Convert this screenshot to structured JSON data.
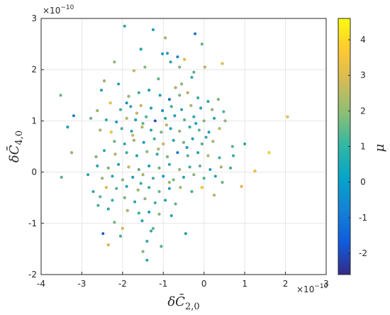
{
  "chart_data": {
    "type": "scatter",
    "xlabel_base": "δC̄",
    "xlabel_sub": "2,0",
    "ylabel_base": "δC̄",
    "ylabel_sub": "4,0",
    "colorbar_label": "μ",
    "x_exponent_base": "×10",
    "x_exponent_power": "−10",
    "y_exponent_base": "×10",
    "y_exponent_power": "−10",
    "xlim": [
      -4,
      3
    ],
    "ylim": [
      -2,
      3
    ],
    "xticks": [
      "-4",
      "-3",
      "-2",
      "-1",
      "0",
      "1",
      "2",
      "3"
    ],
    "yticks": [
      "-2",
      "-1",
      "0",
      "1",
      "2",
      "3"
    ],
    "clim": [
      -2.6,
      4.6
    ],
    "cticks": [
      "-2",
      "-1",
      "0",
      "1",
      "2",
      "3",
      "4"
    ],
    "colormap": [
      "#352a87",
      "#0f5cdd",
      "#1481d6",
      "#06a4ca",
      "#2eb7a4",
      "#87bf77",
      "#d1bb59",
      "#fec832",
      "#f9fb0e"
    ],
    "grid": true,
    "points": [
      [
        -1.95,
        2.85,
        0.8
      ],
      [
        -1.25,
        2.78,
        0.1
      ],
      [
        -0.95,
        2.62,
        2.3
      ],
      [
        -0.22,
        2.7,
        -1.1
      ],
      [
        -0.05,
        2.5,
        1.5
      ],
      [
        -1.55,
        2.4,
        0.4
      ],
      [
        -1.02,
        2.31,
        0.2
      ],
      [
        -0.65,
        2.25,
        -0.6
      ],
      [
        -0.48,
        2.2,
        3.4
      ],
      [
        -0.6,
        2.05,
        1.8
      ],
      [
        -1.45,
        2.05,
        1.9
      ],
      [
        0.02,
        2.05,
        2.7
      ],
      [
        -0.82,
        2.15,
        0.6
      ],
      [
        -2.2,
        2.15,
        2.0
      ],
      [
        -1.72,
        1.98,
        3.0
      ],
      [
        0.45,
        2.12,
        3.4
      ],
      [
        -0.25,
        1.95,
        1.4
      ],
      [
        -2.45,
        1.78,
        2.2
      ],
      [
        -2.52,
        1.6,
        0.6
      ],
      [
        -3.52,
        1.5,
        1.6
      ],
      [
        -3.2,
        1.1,
        -0.8
      ],
      [
        -3.35,
        0.88,
        0.3
      ],
      [
        -2.1,
        1.72,
        0.4
      ],
      [
        -2.3,
        1.35,
        3.7
      ],
      [
        -1.85,
        1.48,
        2.1
      ],
      [
        -1.6,
        1.55,
        1.1
      ],
      [
        -1.35,
        1.6,
        0.1
      ],
      [
        -1.08,
        1.5,
        0.3
      ],
      [
        -0.85,
        1.42,
        -1.2
      ],
      [
        -0.6,
        1.5,
        1.7
      ],
      [
        -0.4,
        1.55,
        2.6
      ],
      [
        -0.15,
        1.45,
        0.9
      ],
      [
        0.1,
        1.38,
        0.5
      ],
      [
        0.35,
        1.42,
        1.8
      ],
      [
        -2.62,
        1.2,
        2.2
      ],
      [
        -2.05,
        1.22,
        1.0
      ],
      [
        -1.8,
        1.28,
        0.7
      ],
      [
        -1.55,
        1.3,
        2.9
      ],
      [
        -1.3,
        1.25,
        0.2
      ],
      [
        -1.02,
        1.2,
        -0.3
      ],
      [
        -0.8,
        1.28,
        1.0
      ],
      [
        -0.55,
        1.22,
        0.5
      ],
      [
        -0.32,
        1.3,
        2.4
      ],
      [
        -0.08,
        1.25,
        0.1
      ],
      [
        0.2,
        1.22,
        2.0
      ],
      [
        0.48,
        1.18,
        1.3
      ],
      [
        -2.78,
        1.05,
        1.6
      ],
      [
        -2.4,
        1.02,
        0.9
      ],
      [
        -2.15,
        0.98,
        0.1
      ],
      [
        -1.9,
        1.05,
        2.5
      ],
      [
        -1.68,
        1.02,
        0.3
      ],
      [
        -1.42,
        1.08,
        1.2
      ],
      [
        -1.2,
        1.0,
        -1.9
      ],
      [
        -0.95,
        1.05,
        0.6
      ],
      [
        -0.72,
        1.1,
        0.2
      ],
      [
        -0.48,
        1.02,
        1.5
      ],
      [
        -0.25,
        1.08,
        0.7
      ],
      [
        0.0,
        1.0,
        1.9
      ],
      [
        0.25,
        1.05,
        0.4
      ],
      [
        0.52,
        1.0,
        2.1
      ],
      [
        -2.55,
        0.82,
        2.3
      ],
      [
        -2.28,
        0.78,
        3.8
      ],
      [
        -2.02,
        0.85,
        1.2
      ],
      [
        -1.78,
        0.8,
        0.5
      ],
      [
        -1.52,
        0.88,
        2.6
      ],
      [
        -1.3,
        0.82,
        0.4
      ],
      [
        -1.05,
        0.78,
        1.7
      ],
      [
        -0.82,
        0.85,
        0.2
      ],
      [
        -0.6,
        0.8,
        2.0
      ],
      [
        -0.35,
        0.88,
        0.9
      ],
      [
        -0.12,
        0.82,
        1.4
      ],
      [
        0.12,
        0.78,
        0.3
      ],
      [
        0.38,
        0.85,
        2.6
      ],
      [
        -2.2,
        0.6,
        1.6
      ],
      [
        -1.95,
        0.55,
        0.8
      ],
      [
        -1.72,
        0.62,
        2.2
      ],
      [
        -1.48,
        0.58,
        0.1
      ],
      [
        -1.22,
        0.65,
        1.1
      ],
      [
        -1.0,
        0.55,
        2.8
      ],
      [
        -0.75,
        0.62,
        0.5
      ],
      [
        -0.5,
        0.58,
        1.6
      ],
      [
        -0.28,
        0.65,
        0.2
      ],
      [
        -0.05,
        0.55,
        1.2
      ],
      [
        0.22,
        0.6,
        2.2
      ],
      [
        0.7,
        0.5,
        1.4
      ],
      [
        1.0,
        0.55,
        0.6
      ],
      [
        -3.25,
        0.38,
        2.1
      ],
      [
        -2.45,
        0.42,
        0.7
      ],
      [
        -2.18,
        0.35,
        2.4
      ],
      [
        -1.9,
        0.38,
        1.0
      ],
      [
        -1.65,
        0.32,
        0.4
      ],
      [
        -1.4,
        0.4,
        2.0
      ],
      [
        -1.15,
        0.35,
        0.7
      ],
      [
        -0.9,
        0.3,
        1.8
      ],
      [
        -0.65,
        0.38,
        -0.9
      ],
      [
        -0.4,
        0.32,
        1.3
      ],
      [
        -0.15,
        0.38,
        0.5
      ],
      [
        0.1,
        0.32,
        2.5
      ],
      [
        0.38,
        0.28,
        1.0
      ],
      [
        0.72,
        0.32,
        0.9
      ],
      [
        1.6,
        0.38,
        4.2
      ],
      [
        -2.62,
        0.12,
        0.5
      ],
      [
        -2.35,
        0.08,
        1.8
      ],
      [
        -2.1,
        0.15,
        0.3
      ],
      [
        -1.85,
        0.1,
        2.7
      ],
      [
        -1.6,
        0.05,
        1.3
      ],
      [
        -1.35,
        0.12,
        0.2
      ],
      [
        -1.1,
        0.08,
        1.6
      ],
      [
        -0.85,
        0.15,
        0.6
      ],
      [
        -0.6,
        0.05,
        2.2
      ],
      [
        -0.35,
        0.1,
        0.9
      ],
      [
        -0.1,
        0.12,
        1.5
      ],
      [
        0.15,
        0.05,
        0.2
      ],
      [
        0.42,
        0.1,
        2.3
      ],
      [
        0.65,
        0.08,
        1.1
      ],
      [
        1.25,
        0.02,
        3.6
      ],
      [
        -3.5,
        -0.1,
        1.5
      ],
      [
        -2.5,
        -0.12,
        2.1
      ],
      [
        -2.25,
        -0.08,
        0.6
      ],
      [
        -2.0,
        -0.15,
        1.9
      ],
      [
        -1.75,
        -0.1,
        0.4
      ],
      [
        -1.5,
        -0.05,
        2.4
      ],
      [
        -1.25,
        -0.12,
        1.0
      ],
      [
        -1.0,
        -0.08,
        0.1
      ],
      [
        -0.75,
        -0.15,
        1.7
      ],
      [
        -0.5,
        -0.1,
        0.7
      ],
      [
        -0.25,
        -0.05,
        2.0
      ],
      [
        0.0,
        -0.12,
        1.2
      ],
      [
        0.28,
        -0.08,
        0.5
      ],
      [
        0.92,
        -0.28,
        3.4
      ],
      [
        -2.4,
        -0.3,
        3.5
      ],
      [
        -2.15,
        -0.32,
        1.4
      ],
      [
        -1.9,
        -0.28,
        0.6
      ],
      [
        -1.62,
        -0.35,
        2.2
      ],
      [
        -1.35,
        -0.3,
        0.9
      ],
      [
        -1.1,
        -0.38,
        1.6
      ],
      [
        -0.85,
        -0.32,
        0.3
      ],
      [
        -0.58,
        -0.3,
        2.5
      ],
      [
        -0.3,
        -0.38,
        1.1
      ],
      [
        -0.05,
        -0.3,
        3.9
      ],
      [
        0.25,
        -0.45,
        2.7
      ],
      [
        -2.72,
        -0.38,
        0.6
      ],
      [
        -2.55,
        -0.48,
        1.4
      ],
      [
        -2.25,
        -0.55,
        0.9
      ],
      [
        -1.95,
        -0.5,
        1.8
      ],
      [
        -1.7,
        -0.58,
        0.5
      ],
      [
        -1.45,
        -0.52,
        2.0
      ],
      [
        -1.2,
        -0.6,
        1.1
      ],
      [
        -0.95,
        -0.55,
        0.4
      ],
      [
        -0.7,
        -0.62,
        1.6
      ],
      [
        -2.6,
        -0.65,
        1.2
      ],
      [
        -2.35,
        -0.72,
        0.7
      ],
      [
        -1.88,
        -0.75,
        2.3
      ],
      [
        -1.6,
        -0.8,
        1.0
      ],
      [
        -1.35,
        -0.78,
        0.2
      ],
      [
        -1.1,
        -0.82,
        1.9
      ],
      [
        -0.8,
        -0.85,
        0.6
      ],
      [
        -1.52,
        -0.95,
        0.5
      ],
      [
        -2.2,
        -0.98,
        1.7
      ],
      [
        -1.25,
        -1.1,
        1.4
      ],
      [
        -2.0,
        -1.1,
        3.2
      ],
      [
        -1.3,
        -1.15,
        0.8
      ],
      [
        -2.48,
        -1.2,
        -1.6
      ],
      [
        -2.05,
        -1.25,
        1.1
      ],
      [
        -0.45,
        -1.2,
        0.4
      ],
      [
        -1.4,
        -1.35,
        0.9
      ],
      [
        -2.35,
        -1.42,
        3.3
      ],
      [
        -1.05,
        -1.45,
        1.3
      ],
      [
        -1.5,
        -1.55,
        1.8
      ],
      [
        -1.4,
        -1.72,
        0.6
      ],
      [
        2.05,
        1.08,
        3.6
      ],
      [
        -0.9,
        2.32,
        0.3
      ],
      [
        -0.55,
        1.72,
        1.9
      ],
      [
        -0.3,
        1.85,
        0.8
      ],
      [
        -1.12,
        1.82,
        1.5
      ],
      [
        -0.7,
        1.65,
        2.2
      ],
      [
        -1.9,
        1.35,
        -0.4
      ],
      [
        -1.65,
        1.15,
        2.8
      ],
      [
        -1.5,
        0.95,
        1.5
      ],
      [
        -0.92,
        0.92,
        2.6
      ],
      [
        -0.2,
        0.95,
        0.1
      ],
      [
        0.05,
        0.68,
        0.8
      ],
      [
        -1.75,
        0.72,
        2.9
      ],
      [
        -1.12,
        0.45,
        2.4
      ],
      [
        -0.42,
        0.48,
        0.3
      ],
      [
        -0.85,
        -0.2,
        2.4
      ],
      [
        -1.55,
        -0.22,
        0.9
      ],
      [
        0.45,
        -0.2,
        1.7
      ],
      [
        -2.85,
        -0.05,
        0.7
      ],
      [
        -2.65,
        0.3,
        1.9
      ]
    ]
  }
}
